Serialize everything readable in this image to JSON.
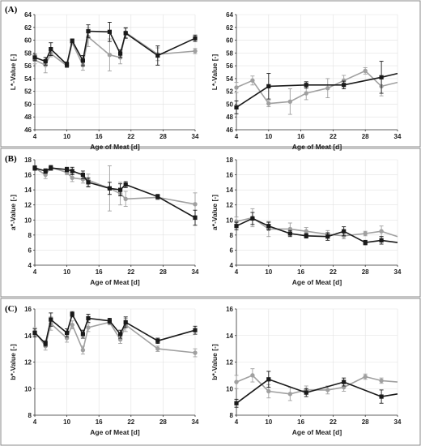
{
  "chart_data": [
    {
      "id": "A-left",
      "type": "line",
      "panel_label": "(A)",
      "panel_row": 0,
      "xlabel": "Age of Meat [d]",
      "ylabel": "L*-Value [-]",
      "xlim": [
        4,
        34
      ],
      "xticks": [
        4,
        10,
        16,
        22,
        28,
        34
      ],
      "ylim": [
        46,
        64
      ],
      "yticks": [
        46,
        48,
        50,
        52,
        54,
        56,
        58,
        60,
        62,
        64
      ],
      "series": [
        {
          "color": "#1a1a1a",
          "marker": "square",
          "x": [
            4,
            6,
            7,
            10,
            11,
            13,
            14,
            18,
            20,
            21,
            27,
            34
          ],
          "y": [
            57.3,
            56.7,
            58.6,
            56.2,
            59.9,
            56.8,
            61.4,
            61.3,
            57.9,
            61.1,
            57.6,
            60.3
          ],
          "err": [
            0.5,
            0.6,
            1.0,
            0.4,
            0.3,
            0.8,
            1.0,
            1.5,
            0.6,
            0.8,
            1.5,
            0.5
          ]
        },
        {
          "color": "#a0a0a0",
          "marker": "circle",
          "x": [
            4,
            6,
            7,
            10,
            11,
            13,
            14,
            18,
            20,
            21,
            27,
            34
          ],
          "y": [
            56.9,
            56.1,
            57.9,
            56.0,
            59.6,
            56.1,
            60.5,
            57.7,
            57.3,
            61.2,
            57.8,
            58.3
          ],
          "err": [
            0.6,
            1.2,
            0.5,
            0.3,
            0.3,
            0.8,
            1.5,
            2.5,
            1.0,
            0.8,
            1.0,
            0.4
          ]
        }
      ]
    },
    {
      "id": "A-right",
      "type": "line",
      "panel_row": 0,
      "xlabel": "Age of Meat [d]",
      "ylabel": "L*-Value [-]",
      "xlim": [
        4,
        34
      ],
      "xticks": [
        4,
        10,
        16,
        22,
        28,
        34
      ],
      "ylim": [
        46,
        64
      ],
      "yticks": [
        46,
        48,
        50,
        52,
        54,
        56,
        58,
        60,
        62,
        64
      ],
      "series": [
        {
          "color": "#1a1a1a",
          "marker": "square",
          "x": [
            4,
            10,
            17,
            24,
            31,
            34
          ],
          "y": [
            49.5,
            52.8,
            53.0,
            53.0,
            54.2,
            54.8
          ],
          "err": [
            1.0,
            2.0,
            0.5,
            0.6,
            2.5,
            0
          ]
        },
        {
          "color": "#a0a0a0",
          "marker": "circle",
          "x": [
            4,
            7,
            10,
            14,
            17,
            21,
            24,
            28,
            31,
            34
          ],
          "y": [
            52.6,
            53.7,
            50.1,
            50.4,
            51.7,
            52.5,
            53.7,
            55.2,
            52.8,
            53.4
          ],
          "err": [
            0.8,
            0.7,
            0.5,
            2.0,
            1.0,
            1.5,
            0.8,
            0.5,
            1.5,
            0
          ]
        }
      ]
    },
    {
      "id": "B-left",
      "type": "line",
      "panel_label": "(B)",
      "panel_row": 1,
      "xlabel": "Age of Meat [d]",
      "ylabel": "a*-Value [-]",
      "xlim": [
        4,
        34
      ],
      "xticks": [
        4,
        10,
        16,
        22,
        28,
        34
      ],
      "ylim": [
        4,
        18
      ],
      "yticks": [
        4,
        6,
        8,
        10,
        12,
        14,
        16,
        18
      ],
      "series": [
        {
          "color": "#1a1a1a",
          "marker": "square",
          "x": [
            4,
            6,
            7,
            10,
            11,
            13,
            14,
            18,
            20,
            21,
            27,
            34
          ],
          "y": [
            16.9,
            16.5,
            16.9,
            16.7,
            16.5,
            16.0,
            15.0,
            14.2,
            14.0,
            14.7,
            13.1,
            10.3
          ],
          "err": [
            0.3,
            0.3,
            0.3,
            0.3,
            0.5,
            0.5,
            0.6,
            0.8,
            0.8,
            0.4,
            0.3,
            1.0
          ]
        },
        {
          "color": "#a0a0a0",
          "marker": "circle",
          "x": [
            4,
            6,
            7,
            10,
            11,
            13,
            14,
            18,
            20,
            21,
            27,
            34
          ],
          "y": [
            16.9,
            16.0,
            17.0,
            16.3,
            15.6,
            15.4,
            15.3,
            14.2,
            13.5,
            12.8,
            13.0,
            12.1
          ],
          "err": [
            0.3,
            0.5,
            0.3,
            0.3,
            0.5,
            0.5,
            0.8,
            3.0,
            1.5,
            1.0,
            0.3,
            1.5
          ]
        }
      ]
    },
    {
      "id": "B-right",
      "type": "line",
      "panel_row": 1,
      "xlabel": "Age of Meat [d]",
      "ylabel": "a*-Value [-]",
      "xlim": [
        4,
        34
      ],
      "xticks": [
        4,
        10,
        16,
        22,
        28,
        34
      ],
      "ylim": [
        4,
        18
      ],
      "yticks": [
        4,
        6,
        8,
        10,
        12,
        14,
        16,
        18
      ],
      "series": [
        {
          "color": "#1a1a1a",
          "marker": "square",
          "x": [
            4,
            7,
            10,
            14,
            17,
            21,
            24,
            28,
            31,
            34
          ],
          "y": [
            9.2,
            10.2,
            9.2,
            8.2,
            7.9,
            7.8,
            8.5,
            7.0,
            7.3,
            7.0
          ],
          "err": [
            0.5,
            0.8,
            0.5,
            0.4,
            0.3,
            0.5,
            0.6,
            0.3,
            0.5,
            0
          ]
        },
        {
          "color": "#a0a0a0",
          "marker": "circle",
          "x": [
            4,
            7,
            10,
            14,
            17,
            21,
            24,
            28,
            31,
            34
          ],
          "y": [
            9.8,
            10.3,
            8.8,
            8.8,
            8.5,
            8.1,
            7.9,
            8.2,
            8.5,
            7.8
          ],
          "err": [
            0.6,
            1.2,
            1.0,
            0.8,
            0.5,
            0.5,
            0.4,
            0.3,
            0.7,
            0
          ]
        }
      ]
    },
    {
      "id": "C-left",
      "type": "line",
      "panel_label": "(C)",
      "panel_row": 2,
      "xlabel": "Age of Meat [d]",
      "ylabel": "b*-Value [-]",
      "xlim": [
        4,
        34
      ],
      "xticks": [
        4,
        10,
        16,
        22,
        28,
        34
      ],
      "ylim": [
        8,
        16
      ],
      "yticks": [
        8,
        10,
        12,
        14,
        16
      ],
      "series": [
        {
          "color": "#1a1a1a",
          "marker": "square",
          "x": [
            4,
            6,
            7,
            10,
            11,
            13,
            14,
            18,
            20,
            21,
            27,
            34
          ],
          "y": [
            14.2,
            13.4,
            15.2,
            14.2,
            15.6,
            14.1,
            15.3,
            15.1,
            14.1,
            15.0,
            13.6,
            14.4
          ],
          "err": [
            0.3,
            0.2,
            0.5,
            0.3,
            0.2,
            0.3,
            0.3,
            0.2,
            0.3,
            0.4,
            0.2,
            0.3
          ]
        },
        {
          "color": "#a0a0a0",
          "marker": "circle",
          "x": [
            4,
            6,
            7,
            10,
            11,
            13,
            14,
            18,
            20,
            21,
            27,
            34
          ],
          "y": [
            14.3,
            13.2,
            14.9,
            13.8,
            14.8,
            12.9,
            14.6,
            15.0,
            13.7,
            14.8,
            13.0,
            12.7
          ],
          "err": [
            0.3,
            0.3,
            0.5,
            0.3,
            0.3,
            0.3,
            0.3,
            0.2,
            0.3,
            0.5,
            0.2,
            0.3
          ]
        }
      ]
    },
    {
      "id": "C-right",
      "type": "line",
      "panel_row": 2,
      "xlabel": "Age of Meat [d]",
      "ylabel": "b*-Value [-]",
      "xlim": [
        4,
        34
      ],
      "xticks": [
        4,
        10,
        16,
        22,
        28,
        34
      ],
      "ylim": [
        8,
        16
      ],
      "yticks": [
        8,
        10,
        12,
        14,
        16
      ],
      "series": [
        {
          "color": "#1a1a1a",
          "marker": "square",
          "x": [
            4,
            10,
            17,
            24,
            31,
            34
          ],
          "y": [
            8.9,
            10.7,
            9.7,
            10.5,
            9.4,
            9.6
          ],
          "err": [
            0.3,
            0.6,
            0.3,
            0.3,
            0.5,
            0
          ]
        },
        {
          "color": "#a0a0a0",
          "marker": "circle",
          "x": [
            4,
            7,
            10,
            14,
            17,
            21,
            24,
            28,
            31,
            34
          ],
          "y": [
            10.5,
            11.0,
            9.8,
            9.6,
            9.9,
            9.9,
            10.1,
            10.9,
            10.6,
            10.5
          ],
          "err": [
            0.5,
            0.5,
            0.5,
            0.5,
            0.3,
            0.3,
            0.3,
            0.2,
            0.2,
            0
          ]
        }
      ]
    }
  ]
}
